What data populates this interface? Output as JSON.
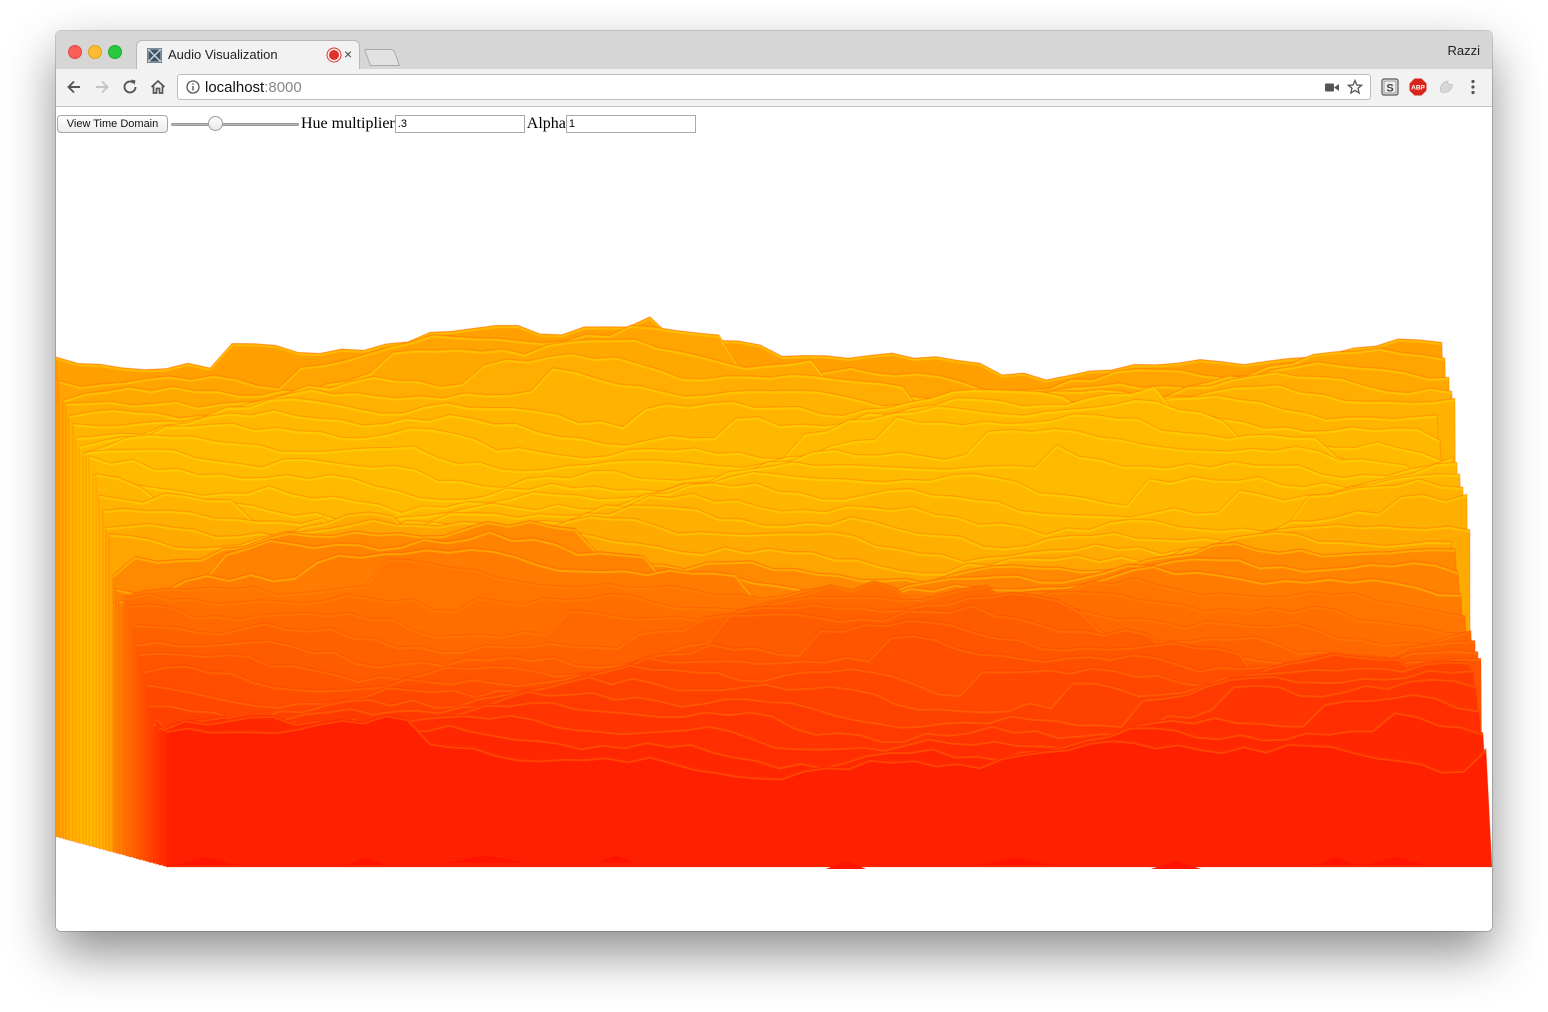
{
  "browser": {
    "tab": {
      "title": "Audio Visualization",
      "favicon": "app-favicon-icon",
      "recording_indicator": "record-icon",
      "close_glyph": "×"
    },
    "profile_name": "Razzi",
    "nav": {
      "back": "back-arrow-icon",
      "forward": "forward-arrow-icon",
      "reload": "reload-icon",
      "home": "home-icon"
    },
    "url": {
      "host": "localhost",
      "port": ":8000"
    },
    "extensions": [
      "stylish-icon",
      "adblock-plus-icon",
      "extension-icon",
      "menu-kebab-icon"
    ]
  },
  "page": {
    "time_domain_button": "View Time Domain",
    "slider_value": 0.33,
    "hue_label": "Hue multiplier",
    "hue_value": ".3",
    "alpha_label": "Alpha",
    "alpha_value": "1"
  },
  "visualization": {
    "type": "3d-spectrogram-surface",
    "colors": {
      "low": "#ff1400",
      "mid": "#ff8c00",
      "high": "#ffea00"
    }
  }
}
